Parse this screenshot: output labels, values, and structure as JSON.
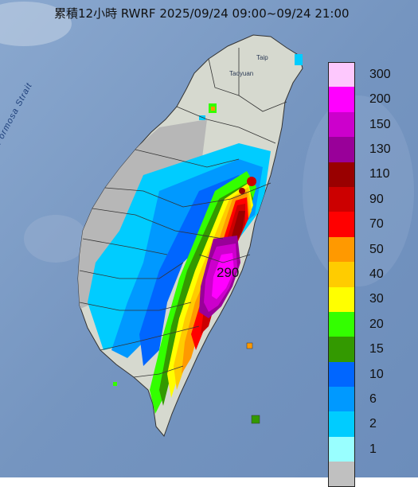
{
  "title": "累積12小時 RWRF 2025/09/24 09:00~09/24 21:00",
  "map_labels": {
    "strait": "Formosa Strait",
    "taipei": "Taip",
    "taoyuan": "Taoyuan"
  },
  "max_value": "290",
  "legend": {
    "items": [
      {
        "label": "300",
        "color": "#fdc8fd"
      },
      {
        "label": "200",
        "color": "#ff00ff"
      },
      {
        "label": "150",
        "color": "#cc00cc"
      },
      {
        "label": "130",
        "color": "#990099"
      },
      {
        "label": "110",
        "color": "#990000"
      },
      {
        "label": "90",
        "color": "#cc0000"
      },
      {
        "label": "70",
        "color": "#ff0000"
      },
      {
        "label": "50",
        "color": "#ff9900"
      },
      {
        "label": "40",
        "color": "#ffcc00"
      },
      {
        "label": "30",
        "color": "#ffff00"
      },
      {
        "label": "20",
        "color": "#33ff00"
      },
      {
        "label": "15",
        "color": "#339900"
      },
      {
        "label": "10",
        "color": "#0066ff"
      },
      {
        "label": "6",
        "color": "#0099ff"
      },
      {
        "label": "2",
        "color": "#00ccff"
      },
      {
        "label": "1",
        "color": "#99ffff"
      },
      {
        "label": "",
        "color": "#c0c0c0"
      }
    ]
  },
  "colors": {
    "sea": "#7f9fc7",
    "land": "#d9dcd2",
    "no_rain": "#b9b9b9"
  }
}
